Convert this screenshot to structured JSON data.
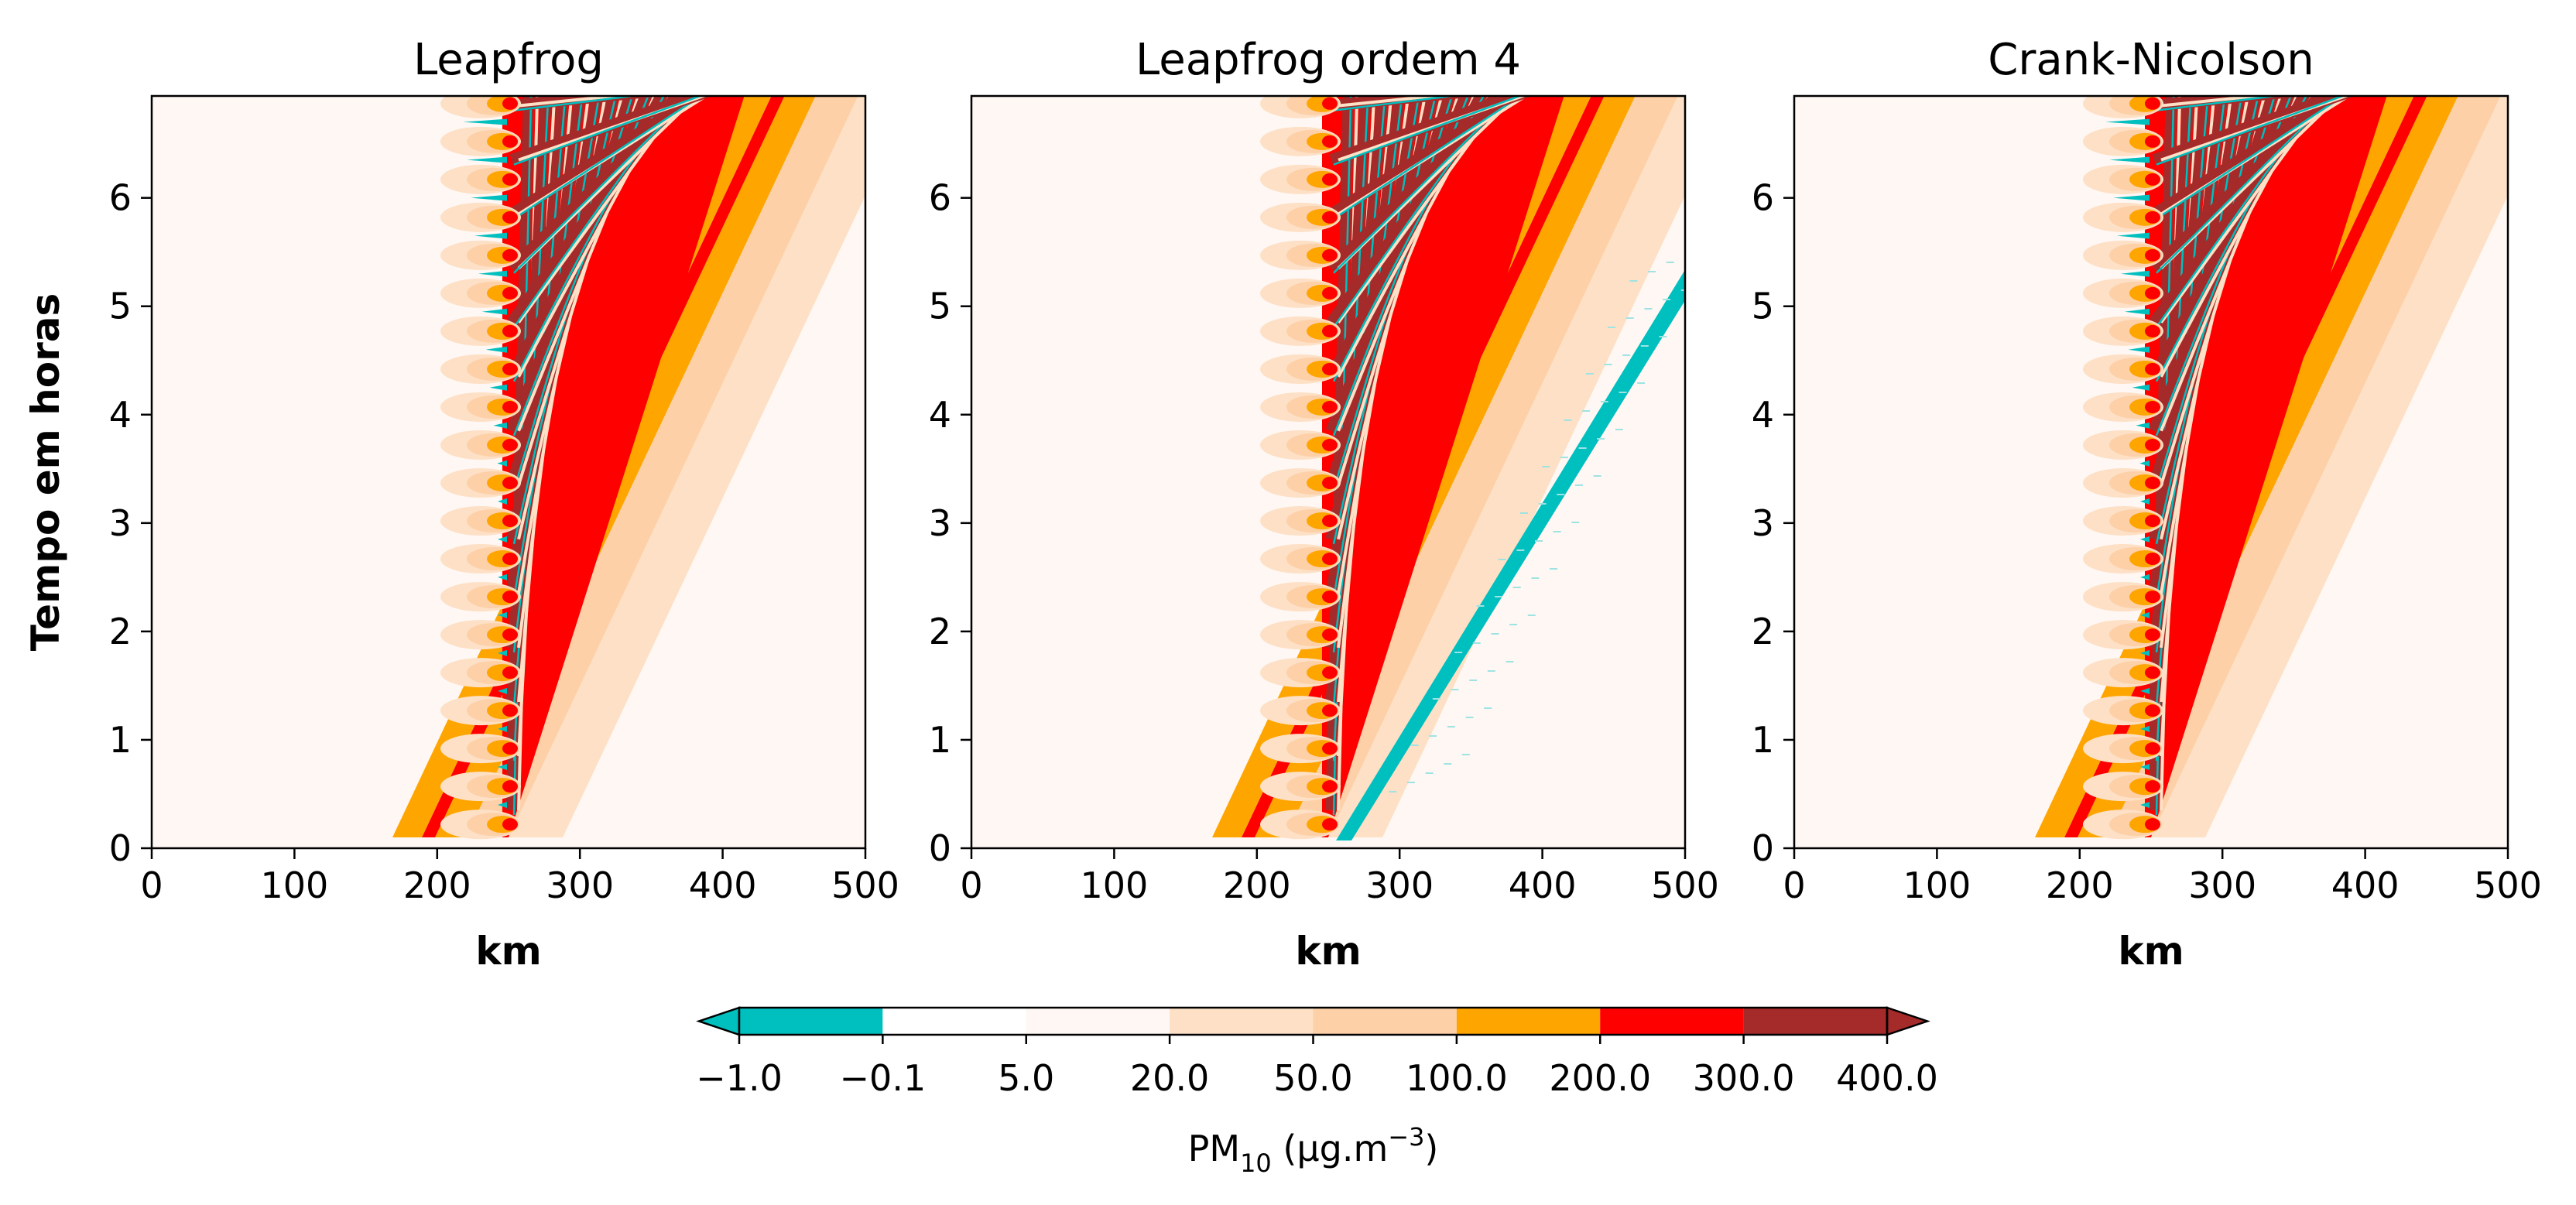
{
  "chart_data": [
    {
      "type": "heatmap",
      "title": "Leapfrog",
      "xlabel": "km",
      "ylabel": "Tempo em horas",
      "xlim": [
        0,
        500
      ],
      "ylim": [
        0,
        6.94
      ],
      "xticks": [
        "0",
        "100",
        "200",
        "300",
        "400",
        "500"
      ],
      "yticks": [
        "0",
        "1",
        "2",
        "3",
        "4",
        "5",
        "6"
      ],
      "source_x": 250,
      "front_x_top": 500,
      "negative_lobes": "left",
      "colorbar_shared": true
    },
    {
      "type": "heatmap",
      "title": "Leapfrog ordem 4",
      "xlabel": "km",
      "ylabel": "",
      "xlim": [
        0,
        500
      ],
      "ylim": [
        0,
        6.94
      ],
      "xticks": [
        "0",
        "100",
        "200",
        "300",
        "400",
        "500"
      ],
      "yticks": [
        "0",
        "1",
        "2",
        "3",
        "4",
        "5",
        "6"
      ],
      "source_x": 250,
      "front_x_top": 500,
      "negative_lobes": "right",
      "colorbar_shared": true
    },
    {
      "type": "heatmap",
      "title": "Crank-Nicolson",
      "xlabel": "km",
      "ylabel": "",
      "xlim": [
        0,
        500
      ],
      "ylim": [
        0,
        6.94
      ],
      "xticks": [
        "0",
        "100",
        "200",
        "300",
        "400",
        "500"
      ],
      "yticks": [
        "0",
        "1",
        "2",
        "3",
        "4",
        "5",
        "6"
      ],
      "source_x": 250,
      "front_x_top": 500,
      "negative_lobes": "left",
      "colorbar_shared": true
    }
  ],
  "colorbar": {
    "levels": [
      "−1.0",
      "−0.1",
      "5.0",
      "20.0",
      "50.0",
      "100.0",
      "200.0",
      "300.0",
      "400.0"
    ],
    "colors": [
      "#00bfbf",
      "#ffffff",
      "#fff7f3",
      "#fde0c5",
      "#fdd0a8",
      "#ffa500",
      "#ff0000",
      "#a52a2a"
    ],
    "label_main": "PM",
    "label_sub": "10",
    "label_rest": " (μg.m",
    "label_sup": "−3",
    "label_close": ")",
    "extend": "both"
  }
}
